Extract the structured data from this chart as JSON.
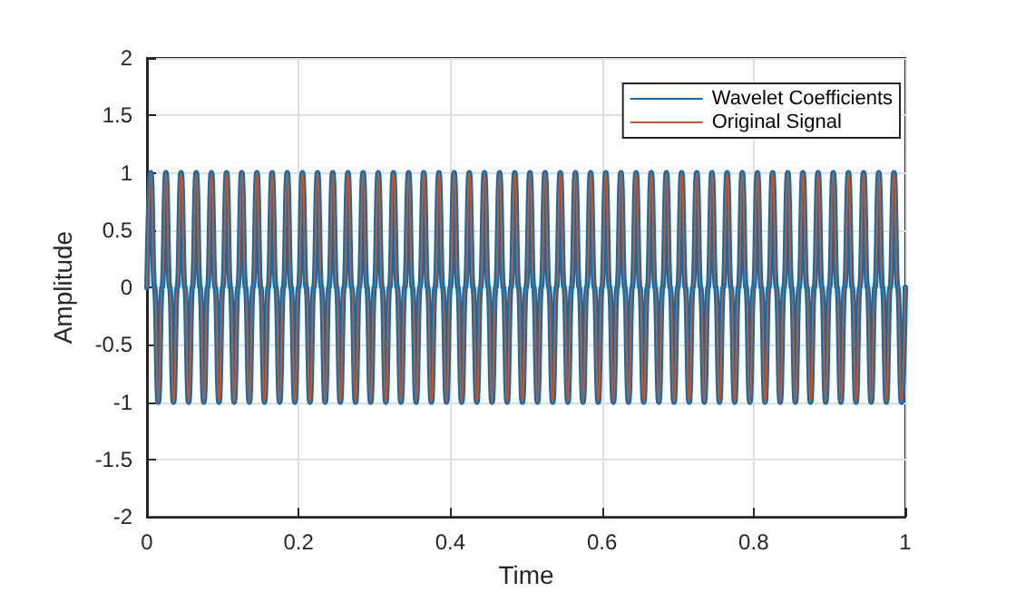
{
  "chart_data": {
    "type": "line",
    "xlabel": "Time",
    "ylabel": "Amplitude",
    "x": [
      0,
      0.005,
      0.01,
      0.015,
      0.02,
      0.025,
      0.03,
      0.035,
      0.04,
      0.045,
      0.05,
      0.055,
      0.06,
      0.065,
      0.07,
      0.075,
      0.08,
      0.085,
      0.09,
      0.095,
      0.1,
      0.105,
      0.11,
      0.115,
      0.12,
      0.125,
      0.13,
      0.135,
      0.14,
      0.145,
      0.15,
      0.155,
      0.16,
      0.165,
      0.17,
      0.175,
      0.18,
      0.185,
      0.19,
      0.195,
      0.2,
      0.205,
      0.21,
      0.215,
      0.22,
      0.225,
      0.23,
      0.235,
      0.24,
      0.245,
      0.25,
      0.255,
      0.26,
      0.265,
      0.27,
      0.275,
      0.28,
      0.285,
      0.29,
      0.295,
      0.3,
      0.305,
      0.31,
      0.315,
      0.32,
      0.325,
      0.33,
      0.335,
      0.34,
      0.345,
      0.35,
      0.355,
      0.36,
      0.365,
      0.37,
      0.375,
      0.38,
      0.385,
      0.39,
      0.395,
      0.4,
      0.405,
      0.41,
      0.415,
      0.42,
      0.425,
      0.43,
      0.435,
      0.44,
      0.445,
      0.45,
      0.455,
      0.46,
      0.465,
      0.47,
      0.475,
      0.48,
      0.485,
      0.49,
      0.495,
      0.5,
      0.505,
      0.51,
      0.515,
      0.52,
      0.525,
      0.53,
      0.535,
      0.54,
      0.545,
      0.55,
      0.555,
      0.56,
      0.565,
      0.57,
      0.575,
      0.58,
      0.585,
      0.59,
      0.595,
      0.6,
      0.605,
      0.61,
      0.615,
      0.62,
      0.625,
      0.63,
      0.635,
      0.64,
      0.645,
      0.65,
      0.655,
      0.66,
      0.665,
      0.67,
      0.675,
      0.68,
      0.685,
      0.69,
      0.695,
      0.7,
      0.705,
      0.71,
      0.715,
      0.72,
      0.725,
      0.73,
      0.735,
      0.74,
      0.745,
      0.75,
      0.755,
      0.76,
      0.765,
      0.77,
      0.775,
      0.78,
      0.785,
      0.79,
      0.795,
      0.8,
      0.805,
      0.81,
      0.815,
      0.82,
      0.825,
      0.83,
      0.835,
      0.84,
      0.845,
      0.85,
      0.855,
      0.86,
      0.865,
      0.87,
      0.875,
      0.88,
      0.885,
      0.89,
      0.895,
      0.9,
      0.905,
      0.91,
      0.915,
      0.92,
      0.925,
      0.93,
      0.935,
      0.94,
      0.945,
      0.95,
      0.955,
      0.96,
      0.965,
      0.97,
      0.975,
      0.98,
      0.985,
      0.99,
      0.995,
      1
    ],
    "series": [
      {
        "name": "Wavelet Coefficients",
        "color": "#0072bd",
        "values": [
          0,
          1,
          0,
          -1,
          0,
          1,
          0,
          -1,
          0,
          1,
          0,
          -1,
          0,
          1,
          0,
          -1,
          0,
          1,
          0,
          -1,
          0,
          1,
          0,
          -1,
          0,
          1,
          0,
          -1,
          0,
          1,
          0,
          -1,
          0,
          1,
          0,
          -1,
          0,
          1,
          0,
          -1,
          0,
          1,
          0,
          -1,
          0,
          1,
          0,
          -1,
          0,
          1,
          0,
          -1,
          0,
          1,
          0,
          -1,
          0,
          1,
          0,
          -1,
          0,
          1,
          0,
          -1,
          0,
          1,
          0,
          -1,
          0,
          1,
          0,
          -1,
          0,
          1,
          0,
          -1,
          0,
          1,
          0,
          -1,
          0,
          1,
          0,
          -1,
          0,
          1,
          0,
          -1,
          0,
          1,
          0,
          -1,
          0,
          1,
          0,
          -1,
          0,
          1,
          0,
          -1,
          0,
          1,
          0,
          -1,
          0,
          1,
          0,
          -1,
          0,
          1,
          0,
          -1,
          0,
          1,
          0,
          -1,
          0,
          1,
          0,
          -1,
          0,
          1,
          0,
          -1,
          0,
          1,
          0,
          -1,
          0,
          1,
          0,
          -1,
          0,
          1,
          0,
          -1,
          0,
          1,
          0,
          -1,
          0,
          1,
          0,
          -1,
          0,
          1,
          0,
          -1,
          0,
          1,
          0,
          -1,
          0,
          1,
          0,
          -1,
          0,
          1,
          0,
          -1,
          0,
          1,
          0,
          -1,
          0,
          1,
          0,
          -1,
          0,
          1,
          0,
          -1,
          0,
          1,
          0,
          -1,
          0,
          1,
          0,
          -1,
          0,
          1,
          0,
          -1,
          0,
          1,
          0,
          -1,
          0,
          1,
          0,
          -1,
          0,
          1,
          0,
          -1,
          0,
          1,
          0,
          -1,
          0
        ]
      },
      {
        "name": "Original Signal",
        "color": "#d95319",
        "values": [
          0,
          1,
          0,
          -1,
          0,
          1,
          0,
          -1,
          0,
          1,
          0,
          -1,
          0,
          1,
          0,
          -1,
          0,
          1,
          0,
          -1,
          0,
          1,
          0,
          -1,
          0,
          1,
          0,
          -1,
          0,
          1,
          0,
          -1,
          0,
          1,
          0,
          -1,
          0,
          1,
          0,
          -1,
          0,
          1,
          0,
          -1,
          0,
          1,
          0,
          -1,
          0,
          1,
          0,
          -1,
          0,
          1,
          0,
          -1,
          0,
          1,
          0,
          -1,
          0,
          1,
          0,
          -1,
          0,
          1,
          0,
          -1,
          0,
          1,
          0,
          -1,
          0,
          1,
          0,
          -1,
          0,
          1,
          0,
          -1,
          0,
          1,
          0,
          -1,
          0,
          1,
          0,
          -1,
          0,
          1,
          0,
          -1,
          0,
          1,
          0,
          -1,
          0,
          1,
          0,
          -1,
          0,
          1,
          0,
          -1,
          0,
          1,
          0,
          -1,
          0,
          1,
          0,
          -1,
          0,
          1,
          0,
          -1,
          0,
          1,
          0,
          -1,
          0,
          1,
          0,
          -1,
          0,
          1,
          0,
          -1,
          0,
          1,
          0,
          -1,
          0,
          1,
          0,
          -1,
          0,
          1,
          0,
          -1,
          0,
          1,
          0,
          -1,
          0,
          1,
          0,
          -1,
          0,
          1,
          0,
          -1,
          0,
          1,
          0,
          -1,
          0,
          1,
          0,
          -1,
          0,
          1,
          0,
          -1,
          0,
          1,
          0,
          -1,
          0,
          1,
          0,
          -1,
          0,
          1,
          0,
          -1,
          0,
          1,
          0,
          -1,
          0,
          1,
          0,
          -1,
          0,
          1,
          0,
          -1,
          0,
          1,
          0,
          -1,
          0,
          1,
          0,
          -1,
          0,
          1,
          0,
          -1,
          0
        ]
      }
    ],
    "xlim": [
      0,
      1
    ],
    "xticks": [
      0,
      0.2,
      0.4,
      0.6,
      0.8,
      1
    ],
    "ylim": [
      -2,
      2
    ],
    "yticks": [
      -2,
      -1.5,
      -1,
      -0.5,
      0,
      0.5,
      1,
      1.5,
      2
    ],
    "grid": true,
    "legend": "top right",
    "marker": "none",
    "line_style": "solid"
  }
}
